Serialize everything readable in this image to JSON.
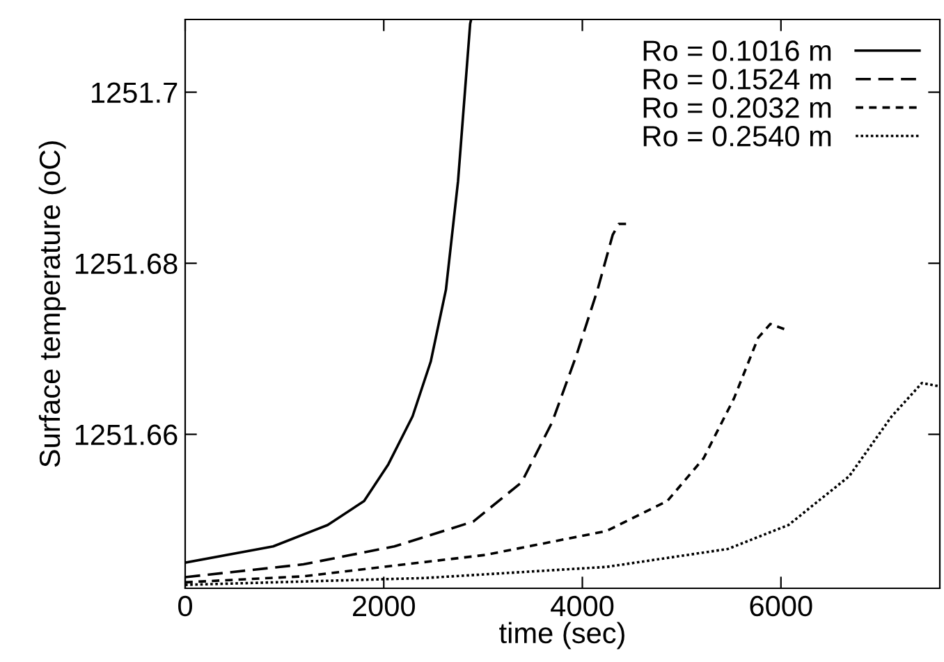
{
  "chart_data": {
    "type": "line",
    "xlabel": "time (sec)",
    "ylabel": "Surface temperature (oC)",
    "xlim": [
      0,
      7600
    ],
    "ylim": [
      1251.642,
      1251.7085
    ],
    "xticks": [
      0,
      2000,
      4000,
      6000
    ],
    "yticks": [
      1251.66,
      1251.68,
      1251.7
    ],
    "grid": false,
    "legend": "top right",
    "marker": "none",
    "series": [
      {
        "name": "Ro = 0.1016 m",
        "color": "#000000",
        "line_style": "solid",
        "x": [
          0,
          886,
          1435,
          1802,
          2046,
          2290,
          2473,
          2626,
          2748,
          2870,
          2880
        ],
        "values": [
          1251.645,
          1251.6469,
          1251.6494,
          1251.6522,
          1251.6565,
          1251.6621,
          1251.6685,
          1251.6769,
          1251.6896,
          1251.708,
          1251.7085
        ]
      },
      {
        "name": "Ro = 0.1524 m",
        "color": "#000000",
        "line_style": "dashed",
        "x": [
          0,
          1191,
          2107,
          2901,
          3389,
          3695,
          3939,
          4153,
          4305,
          4367,
          4440
        ],
        "values": [
          1251.6433,
          1251.6448,
          1251.6469,
          1251.6498,
          1251.6544,
          1251.6614,
          1251.6692,
          1251.6769,
          1251.6833,
          1251.6846,
          1251.6846
        ]
      },
      {
        "name": "Ro = 0.2032 m",
        "color": "#000000",
        "line_style": "dashed",
        "x": [
          0,
          1191,
          3023,
          4244,
          4855,
          5221,
          5527,
          5771,
          5893,
          6034
        ],
        "values": [
          1251.6427,
          1251.6434,
          1251.6459,
          1251.6487,
          1251.6522,
          1251.6572,
          1251.6642,
          1251.6713,
          1251.6729,
          1251.6723
        ]
      },
      {
        "name": "Ro = 0.2540 m",
        "color": "#000000",
        "line_style": "dotted",
        "x": [
          0,
          2412,
          4244,
          5466,
          6076,
          6687,
          7115,
          7420,
          7600
        ],
        "values": [
          1251.6424,
          1251.6432,
          1251.6445,
          1251.6466,
          1251.6494,
          1251.6551,
          1251.6621,
          1251.666,
          1251.6656
        ]
      }
    ]
  }
}
